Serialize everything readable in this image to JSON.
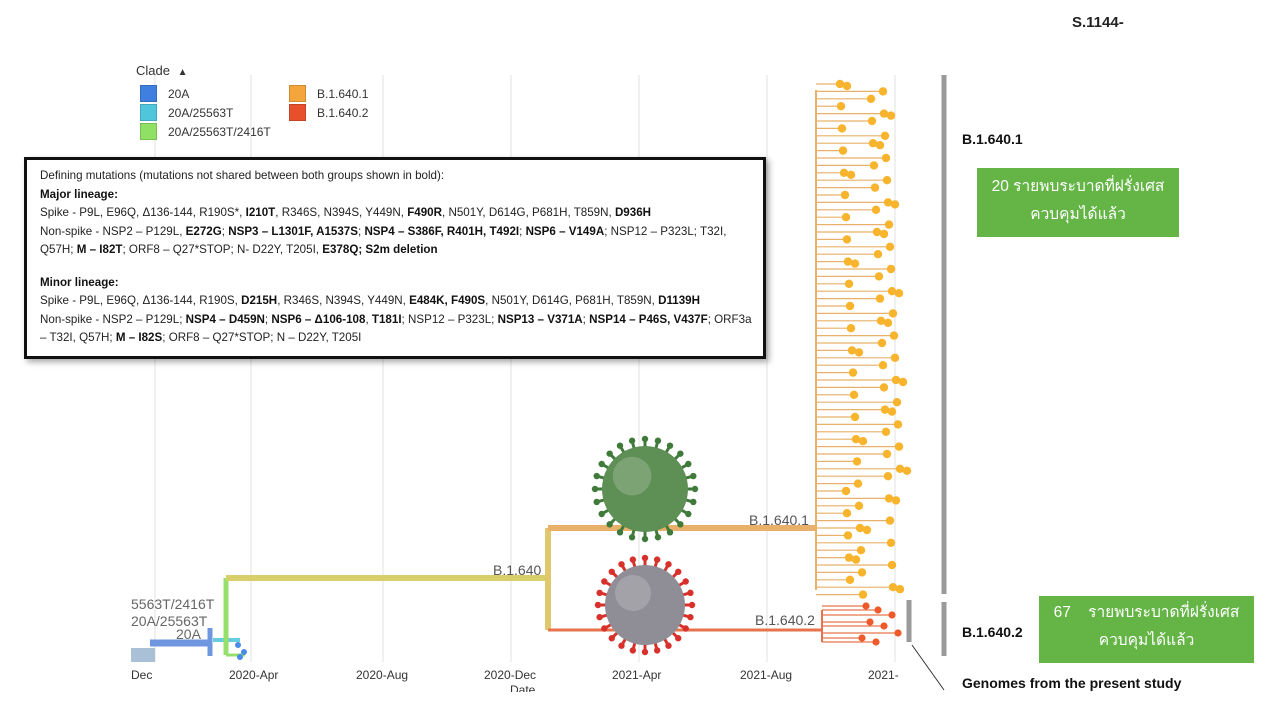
{
  "top_fragment": "S.1144-",
  "legend": {
    "title": "Clade",
    "items": [
      {
        "label": "20A",
        "color": "#3e7fe0"
      },
      {
        "label": "20A/25563T",
        "color": "#4fc6dc"
      },
      {
        "label": "20A/25563T/2416T",
        "color": "#8fe065"
      },
      {
        "label": "B.1.640.1",
        "color": "#f4a53c"
      },
      {
        "label": "B.1.640.2",
        "color": "#e8502c"
      }
    ]
  },
  "mutations": {
    "heading": "Defining mutations (mutations not shared between both groups shown in bold):",
    "major_title": "Major lineage:",
    "minor_title": "Minor lineage:",
    "major_lines": [
      [
        {
          "t": "Spike - P9L, E96Q, Δ136-144, R190S*, ",
          "b": false
        },
        {
          "t": "I210T",
          "b": true
        },
        {
          "t": ", R346S, N394S, Y449N, ",
          "b": false
        },
        {
          "t": "F490R",
          "b": true
        },
        {
          "t": ", N501Y, D614G, P681H, T859N, ",
          "b": false
        },
        {
          "t": "D936H",
          "b": true
        }
      ],
      [
        {
          "t": "Non-spike - NSP2 – P129L, ",
          "b": false
        },
        {
          "t": "E272G",
          "b": true
        },
        {
          "t": "; ",
          "b": false
        },
        {
          "t": "NSP3 – L1301F, A1537S",
          "b": true
        },
        {
          "t": "; ",
          "b": false
        },
        {
          "t": "NSP4 – S386F, R401H, T492I",
          "b": true
        },
        {
          "t": "; ",
          "b": false
        },
        {
          "t": "NSP6 – V149A",
          "b": true
        },
        {
          "t": "; NSP12 – P323L; T32I,",
          "b": false
        }
      ],
      [
        {
          "t": "Q57H; ",
          "b": false
        },
        {
          "t": "M – I82T",
          "b": true
        },
        {
          "t": "; ORF8 – Q27*STOP; N- D22Y, T205I, ",
          "b": false
        },
        {
          "t": "E378Q; S2m deletion",
          "b": true
        }
      ]
    ],
    "minor_lines": [
      [
        {
          "t": "Spike - P9L, E96Q, Δ136-144, R190S, ",
          "b": false
        },
        {
          "t": "D215H",
          "b": true
        },
        {
          "t": ", R346S, N394S, Y449N, ",
          "b": false
        },
        {
          "t": "E484K, F490S",
          "b": true
        },
        {
          "t": ", N501Y, D614G, P681H, T859N, ",
          "b": false
        },
        {
          "t": "D1139H",
          "b": true
        }
      ],
      [
        {
          "t": "Non-spike - NSP2 – P129L; ",
          "b": false
        },
        {
          "t": "NSP4 – D459N",
          "b": true
        },
        {
          "t": "; ",
          "b": false
        },
        {
          "t": "NSP6 – Δ106-108",
          "b": true
        },
        {
          "t": ", ",
          "b": false
        },
        {
          "t": "T181I",
          "b": true
        },
        {
          "t": "; NSP12 – P323L; ",
          "b": false
        },
        {
          "t": "NSP13 – V371A",
          "b": true
        },
        {
          "t": "; ",
          "b": false
        },
        {
          "t": "NSP14 – P46S, V437F",
          "b": true
        },
        {
          "t": "; ORF3a",
          "b": false
        }
      ],
      [
        {
          "t": "– T32I, Q57H; ",
          "b": false
        },
        {
          "t": "M – I82S",
          "b": true
        },
        {
          "t": "; ORF8 – Q27*STOP; N – D22Y, T205I",
          "b": false
        }
      ]
    ]
  },
  "branch_labels": {
    "b1640": "B.1.640",
    "b16401": "B.1.640.1",
    "b16402": "B.1.640.2",
    "clade_stack": [
      "5563T/2416T",
      "20A/25563T",
      "20A"
    ]
  },
  "side_labels": {
    "b16401": "B.1.640.1",
    "b16402": "B.1.640.2",
    "genomes": "Genomes from the present study"
  },
  "notes": {
    "upper": {
      "line1": "20 รายพบระบาดที่ฝรั่งเศส",
      "line2": "ควบคุมได้แล้ว"
    },
    "lower": {
      "line1": "67    รายพบระบาดที่ฝรั่งเศส",
      "line2": "ควบคุมได้แล้ว"
    }
  },
  "axis": {
    "ticks": [
      "Dec",
      "2020-Apr",
      "2020-Aug",
      "2020-Dec",
      "2021-Apr",
      "2021-Aug",
      "2021-"
    ],
    "date_label": "Date"
  },
  "colors": {
    "branch_1640": "#d8cf6a",
    "branch_16401": "#e8b068",
    "branch_16402": "#e6734c",
    "tip_16401": "#f7b42c",
    "tip_16402": "#ee5a2a",
    "bracket": "#9a9a9a",
    "note_green": "#64b446"
  }
}
